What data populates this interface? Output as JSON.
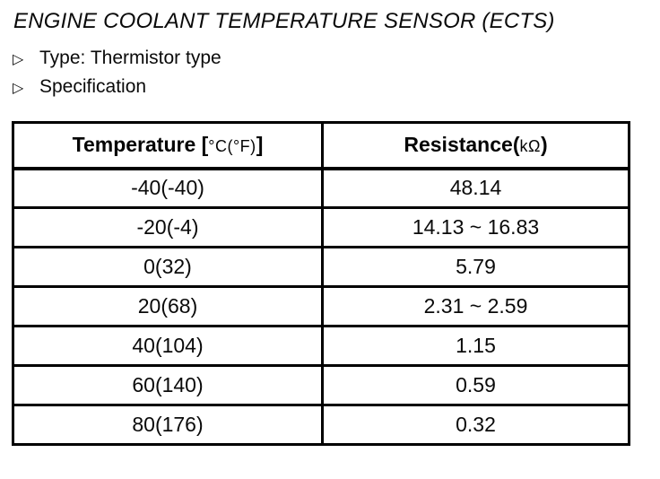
{
  "title": "ENGINE COOLANT TEMPERATURE SENSOR (ECTS)",
  "bullets": [
    {
      "marker": "▷",
      "label": "Type: Thermistor type"
    },
    {
      "marker": "▷",
      "label": "Specification"
    }
  ],
  "spec_table": {
    "columns": [
      {
        "prefix": "Temperature [",
        "unit": "°C(°F)",
        "suffix": "]"
      },
      {
        "prefix": "Resistance(",
        "unit": "kΩ",
        "suffix": ")"
      }
    ],
    "rows": [
      {
        "temperature": "-40(-40)",
        "resistance": "48.14"
      },
      {
        "temperature": "-20(-4)",
        "resistance": "14.13 ~ 16.83"
      },
      {
        "temperature": "0(32)",
        "resistance": "5.79"
      },
      {
        "temperature": "20(68)",
        "resistance": "2.31 ~ 2.59"
      },
      {
        "temperature": "40(104)",
        "resistance": "1.15"
      },
      {
        "temperature": "60(140)",
        "resistance": "0.59"
      },
      {
        "temperature": "80(176)",
        "resistance": "0.32"
      }
    ]
  },
  "colors": {
    "ink": "#000000",
    "paper": "#ffffff"
  }
}
